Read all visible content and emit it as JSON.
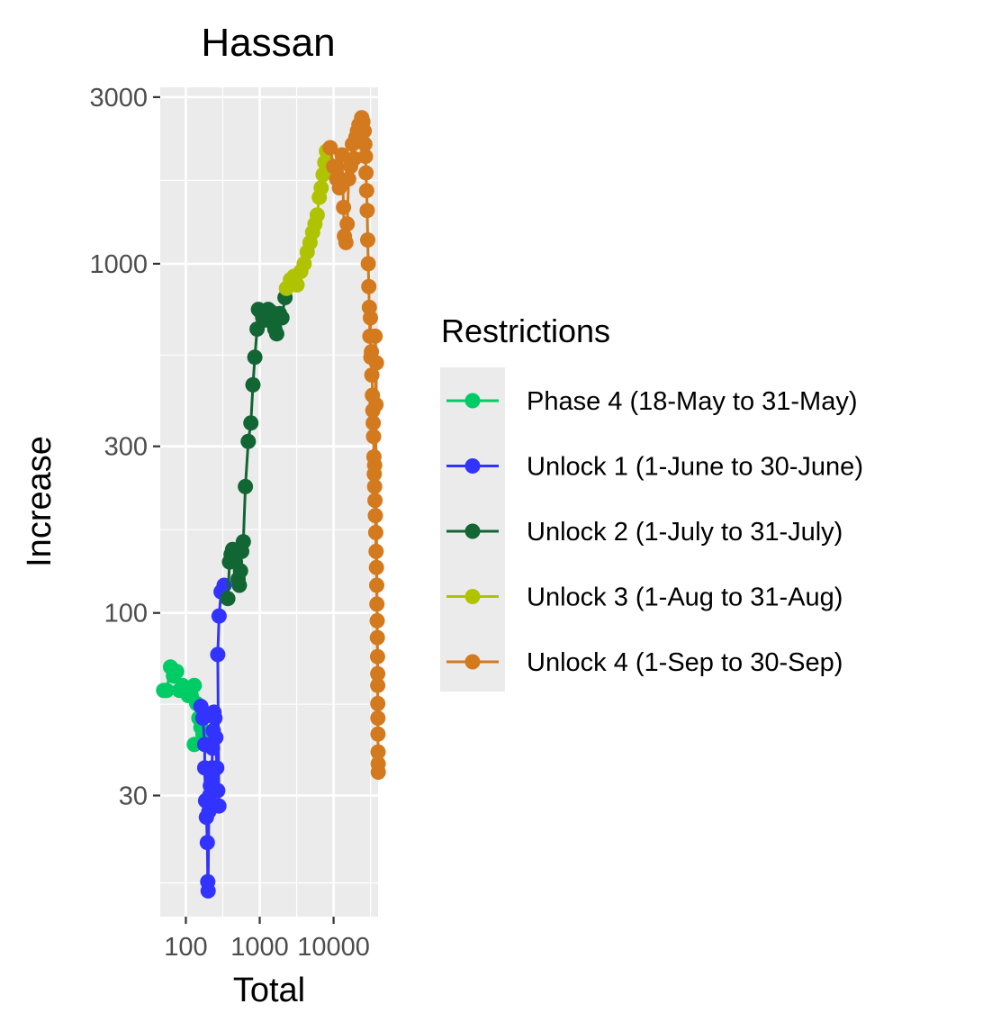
{
  "chart_data": {
    "type": "scatter",
    "title": "Hassan",
    "xlabel": "Total",
    "ylabel": "Increase",
    "xscale": "log",
    "yscale": "log",
    "xlim": [
      45,
      40000
    ],
    "ylim": [
      13.5,
      3200
    ],
    "xticks": [
      100,
      1000,
      10000
    ],
    "xtick_labels": [
      "100",
      "1000",
      "10000"
    ],
    "yticks": [
      30,
      100,
      300,
      1000,
      3000
    ],
    "ytick_labels": [
      "30",
      "100",
      "300",
      "1000",
      "3000"
    ],
    "grid": true,
    "legend": {
      "title": "Restrictions",
      "position": "right"
    },
    "series": [
      {
        "name": "Phase 4 (18-May to 31-May)",
        "color": "#00CC66",
        "points": [
          [
            50,
            60
          ],
          [
            55,
            60
          ],
          [
            62,
            70
          ],
          [
            68,
            66
          ],
          [
            75,
            68
          ],
          [
            82,
            60
          ],
          [
            90,
            62
          ],
          [
            100,
            60
          ],
          [
            108,
            58
          ],
          [
            118,
            58
          ],
          [
            130,
            62
          ],
          [
            140,
            55
          ],
          [
            150,
            50
          ],
          [
            160,
            47
          ],
          [
            170,
            45
          ],
          [
            130,
            42
          ]
        ]
      },
      {
        "name": "Unlock 1 (1-June to 30-June)",
        "color": "#3333FF",
        "points": [
          [
            160,
            54
          ],
          [
            170,
            50
          ],
          [
            180,
            42
          ],
          [
            180,
            36
          ],
          [
            185,
            29
          ],
          [
            190,
            26
          ],
          [
            195,
            22
          ],
          [
            198,
            17
          ],
          [
            200,
            16
          ],
          [
            205,
            27
          ],
          [
            210,
            30
          ],
          [
            215,
            32
          ],
          [
            220,
            34
          ],
          [
            225,
            36
          ],
          [
            230,
            41
          ],
          [
            235,
            46
          ],
          [
            240,
            52
          ],
          [
            248,
            50
          ],
          [
            255,
            44
          ],
          [
            262,
            36
          ],
          [
            270,
            31
          ],
          [
            280,
            28
          ],
          [
            270,
            76
          ],
          [
            282,
            98
          ],
          [
            300,
            115
          ],
          [
            330,
            120
          ]
        ]
      },
      {
        "name": "Unlock 2 (1-July to 31-July)",
        "color": "#116633",
        "points": [
          [
            370,
            110
          ],
          [
            390,
            140
          ],
          [
            410,
            147
          ],
          [
            430,
            152
          ],
          [
            450,
            150
          ],
          [
            470,
            140
          ],
          [
            490,
            148
          ],
          [
            510,
            125
          ],
          [
            530,
            120
          ],
          [
            550,
            132
          ],
          [
            570,
            150
          ],
          [
            600,
            160
          ],
          [
            640,
            230
          ],
          [
            700,
            310
          ],
          [
            760,
            350
          ],
          [
            810,
            450
          ],
          [
            860,
            540
          ],
          [
            920,
            650
          ],
          [
            960,
            740
          ],
          [
            1020,
            730
          ],
          [
            1100,
            700
          ],
          [
            1200,
            690
          ],
          [
            1300,
            740
          ],
          [
            1400,
            730
          ],
          [
            1500,
            680
          ],
          [
            1600,
            650
          ],
          [
            1700,
            630
          ],
          [
            1850,
            720
          ],
          [
            2000,
            700
          ],
          [
            2200,
            800
          ]
        ]
      },
      {
        "name": "Unlock 3 (1-Aug to 31-Aug)",
        "color": "#AFC300",
        "points": [
          [
            2300,
            850
          ],
          [
            2600,
            900
          ],
          [
            2900,
            920
          ],
          [
            3200,
            870
          ],
          [
            3600,
            950
          ],
          [
            4000,
            1000
          ],
          [
            4400,
            1080
          ],
          [
            4800,
            1150
          ],
          [
            5200,
            1230
          ],
          [
            5600,
            1300
          ],
          [
            6000,
            1380
          ],
          [
            6400,
            1550
          ],
          [
            6800,
            1650
          ],
          [
            7200,
            1800
          ],
          [
            7600,
            1950
          ],
          [
            8000,
            2100
          ],
          [
            8400,
            1900
          ]
        ]
      },
      {
        "name": "Unlock 4 (1-Sep to 30-Sep)",
        "color": "#D47A1E",
        "points": [
          [
            9000,
            2150
          ],
          [
            10000,
            1900
          ],
          [
            11000,
            1750
          ],
          [
            12000,
            1650
          ],
          [
            13000,
            2050
          ],
          [
            13600,
            1450
          ],
          [
            14000,
            1200
          ],
          [
            14700,
            1150
          ],
          [
            15300,
            1300
          ],
          [
            16000,
            1750
          ],
          [
            17000,
            1900
          ],
          [
            18000,
            2200
          ],
          [
            19000,
            2000
          ],
          [
            20000,
            2300
          ],
          [
            21000,
            2400
          ],
          [
            22000,
            2500
          ],
          [
            23000,
            2450
          ],
          [
            24000,
            2620
          ],
          [
            25000,
            2550
          ],
          [
            26000,
            2400
          ],
          [
            26500,
            2200
          ],
          [
            27000,
            2030
          ],
          [
            27500,
            1820
          ],
          [
            28000,
            1620
          ],
          [
            28500,
            1420
          ],
          [
            29000,
            1170
          ],
          [
            29500,
            1000
          ],
          [
            30000,
            860
          ],
          [
            30500,
            750
          ],
          [
            31000,
            620
          ],
          [
            31500,
            700
          ],
          [
            32000,
            540
          ],
          [
            32500,
            560
          ],
          [
            33000,
            480
          ],
          [
            33500,
            420
          ],
          [
            34000,
            380
          ],
          [
            34400,
            350
          ],
          [
            34800,
            320
          ],
          [
            35200,
            280
          ],
          [
            35600,
            250
          ],
          [
            36000,
            230
          ],
          [
            36400,
            210
          ],
          [
            36800,
            190
          ],
          [
            37200,
            170
          ],
          [
            37600,
            150
          ],
          [
            38000,
            135
          ],
          [
            38300,
            120
          ],
          [
            38600,
            106
          ],
          [
            38900,
            95
          ],
          [
            39100,
            85
          ],
          [
            39300,
            75
          ],
          [
            39500,
            67
          ],
          [
            39600,
            62
          ],
          [
            39700,
            55
          ],
          [
            39800,
            50
          ],
          [
            39900,
            45
          ],
          [
            40000,
            40
          ],
          [
            40100,
            37
          ],
          [
            40200,
            35
          ],
          [
            36500,
            620
          ],
          [
            38000,
            520
          ],
          [
            37500,
            395
          ],
          [
            36000,
            265
          ]
        ]
      }
    ]
  }
}
